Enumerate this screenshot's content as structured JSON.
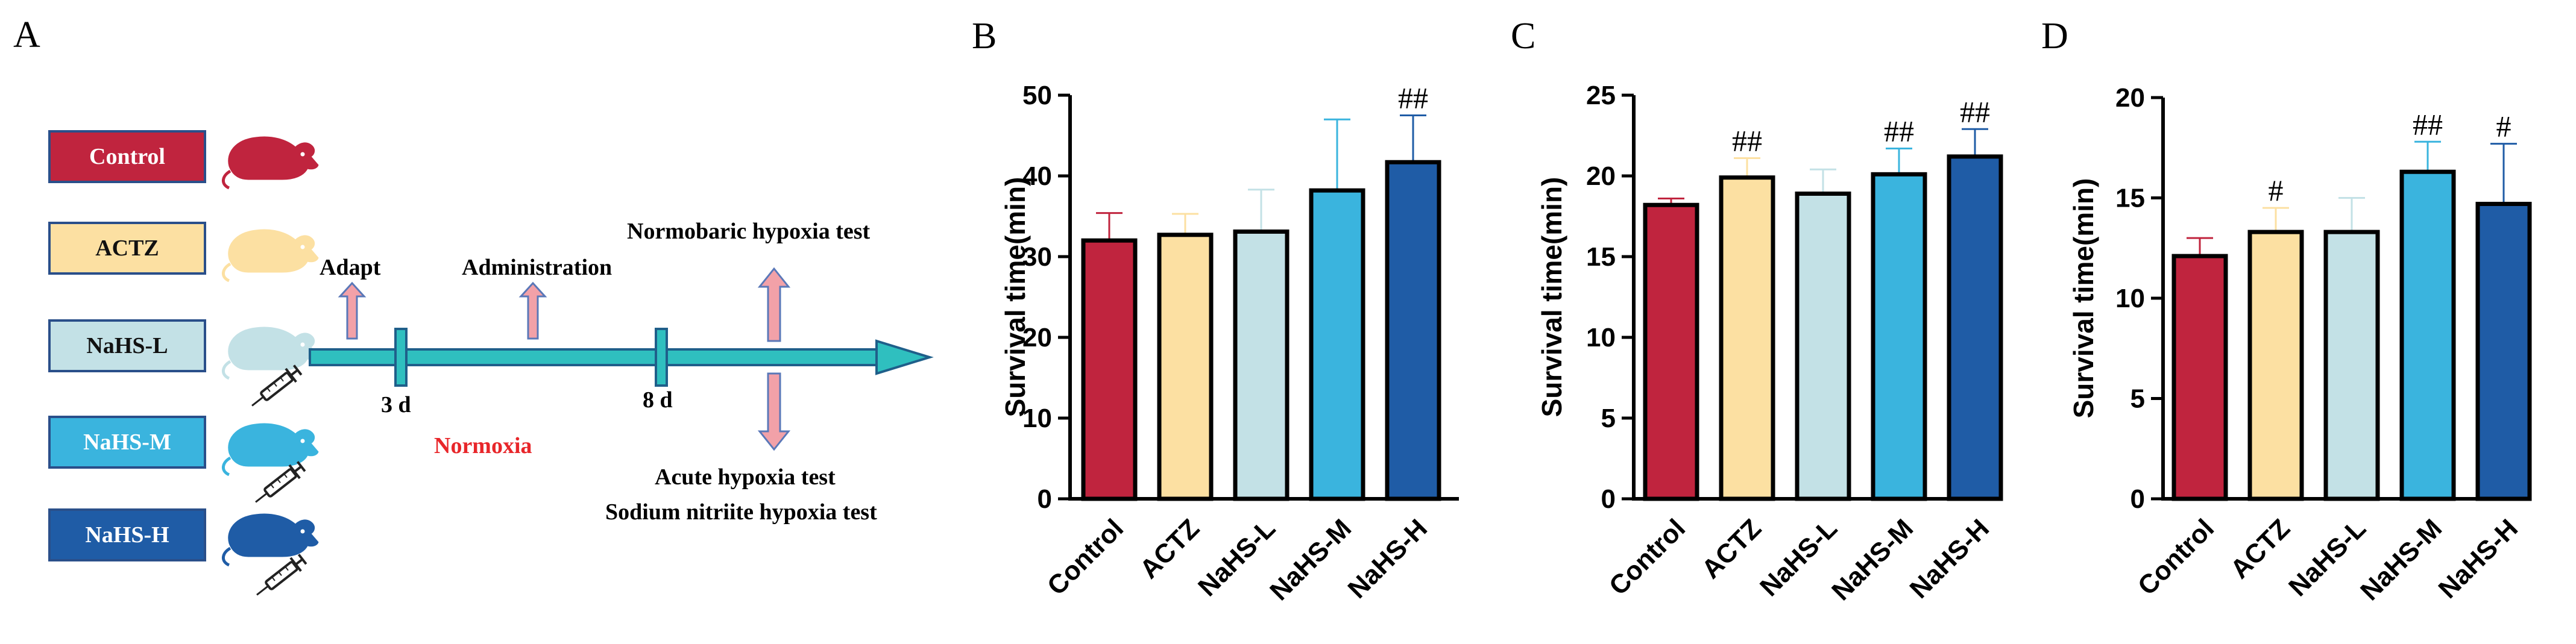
{
  "panels": {
    "A": "A",
    "B": "B",
    "C": "C",
    "D": "D"
  },
  "groups": [
    {
      "label": "Control",
      "color": "#C0243E",
      "text_color": "#ffffff"
    },
    {
      "label": "ACTZ",
      "color": "#FCE0A2",
      "text_color": "#111111"
    },
    {
      "label": "NaHS-L",
      "color": "#C3E1E6",
      "text_color": "#111111"
    },
    {
      "label": "NaHS-M",
      "color": "#3AB4DE",
      "text_color": "#ffffff"
    },
    {
      "label": "NaHS-H",
      "color": "#1F5CA6",
      "text_color": "#ffffff"
    }
  ],
  "timeline": {
    "adapt": "Adapt",
    "administration": "Administration",
    "day3": "3 d",
    "day8": "8 d",
    "normoxia": "Normoxia",
    "normobaric_test": "Normobaric hypoxia test",
    "acute_test": "Acute hypoxia test",
    "nitrite_test": "Sodium nitriite hypoxia test",
    "arrow_color": "#2FBFBF",
    "up_arrow_color": "#F2A1A8",
    "normoxia_color": "#E8262A"
  },
  "chart_data": [
    {
      "panel": "B",
      "type": "bar",
      "categories": [
        "Control",
        "ACTZ",
        "NaHS-L",
        "NaHS-M",
        "NaHS-H"
      ],
      "values": [
        32,
        32.7,
        33.1,
        38.2,
        41.7
      ],
      "errors": [
        3.4,
        2.6,
        5.2,
        8.8,
        5.8
      ],
      "annotations": [
        "",
        "",
        "",
        "",
        "##"
      ],
      "ylabel": "Survival time(min)",
      "ylim": [
        0,
        50
      ],
      "yticks": [
        0,
        10,
        20,
        30,
        40,
        50
      ],
      "ytick_labels": [
        "0",
        "10",
        "20",
        "30",
        "40",
        "50"
      ]
    },
    {
      "panel": "C",
      "type": "bar",
      "categories": [
        "Control",
        "ACTZ",
        "NaHS-L",
        "NaHS-M",
        "NaHS-H"
      ],
      "values": [
        18.2,
        19.9,
        18.9,
        20.1,
        21.2
      ],
      "errors": [
        0.4,
        1.2,
        1.5,
        1.6,
        1.7
      ],
      "annotations": [
        "",
        "##",
        "",
        "##",
        "##"
      ],
      "ylabel": "Survival time(min)",
      "ylim": [
        0,
        25
      ],
      "yticks": [
        0,
        5,
        10,
        15,
        20,
        25
      ],
      "ytick_labels": [
        "0",
        "5",
        "10",
        "15",
        "20",
        "25"
      ]
    },
    {
      "panel": "D",
      "type": "bar",
      "categories": [
        "Control",
        "ACTZ",
        "NaHS-L",
        "NaHS-M",
        "NaHS-H"
      ],
      "values": [
        12.1,
        13.3,
        13.3,
        16.3,
        14.7
      ],
      "errors": [
        0.9,
        1.2,
        1.7,
        1.5,
        3.0
      ],
      "annotations": [
        "",
        "#",
        "",
        "##",
        "#"
      ],
      "ylabel": "Survival time(min)",
      "ylim": [
        0,
        20
      ],
      "yticks": [
        0,
        5,
        10,
        15,
        20
      ],
      "ytick_labels": [
        "0",
        "5",
        "10",
        "15",
        "20"
      ]
    }
  ]
}
